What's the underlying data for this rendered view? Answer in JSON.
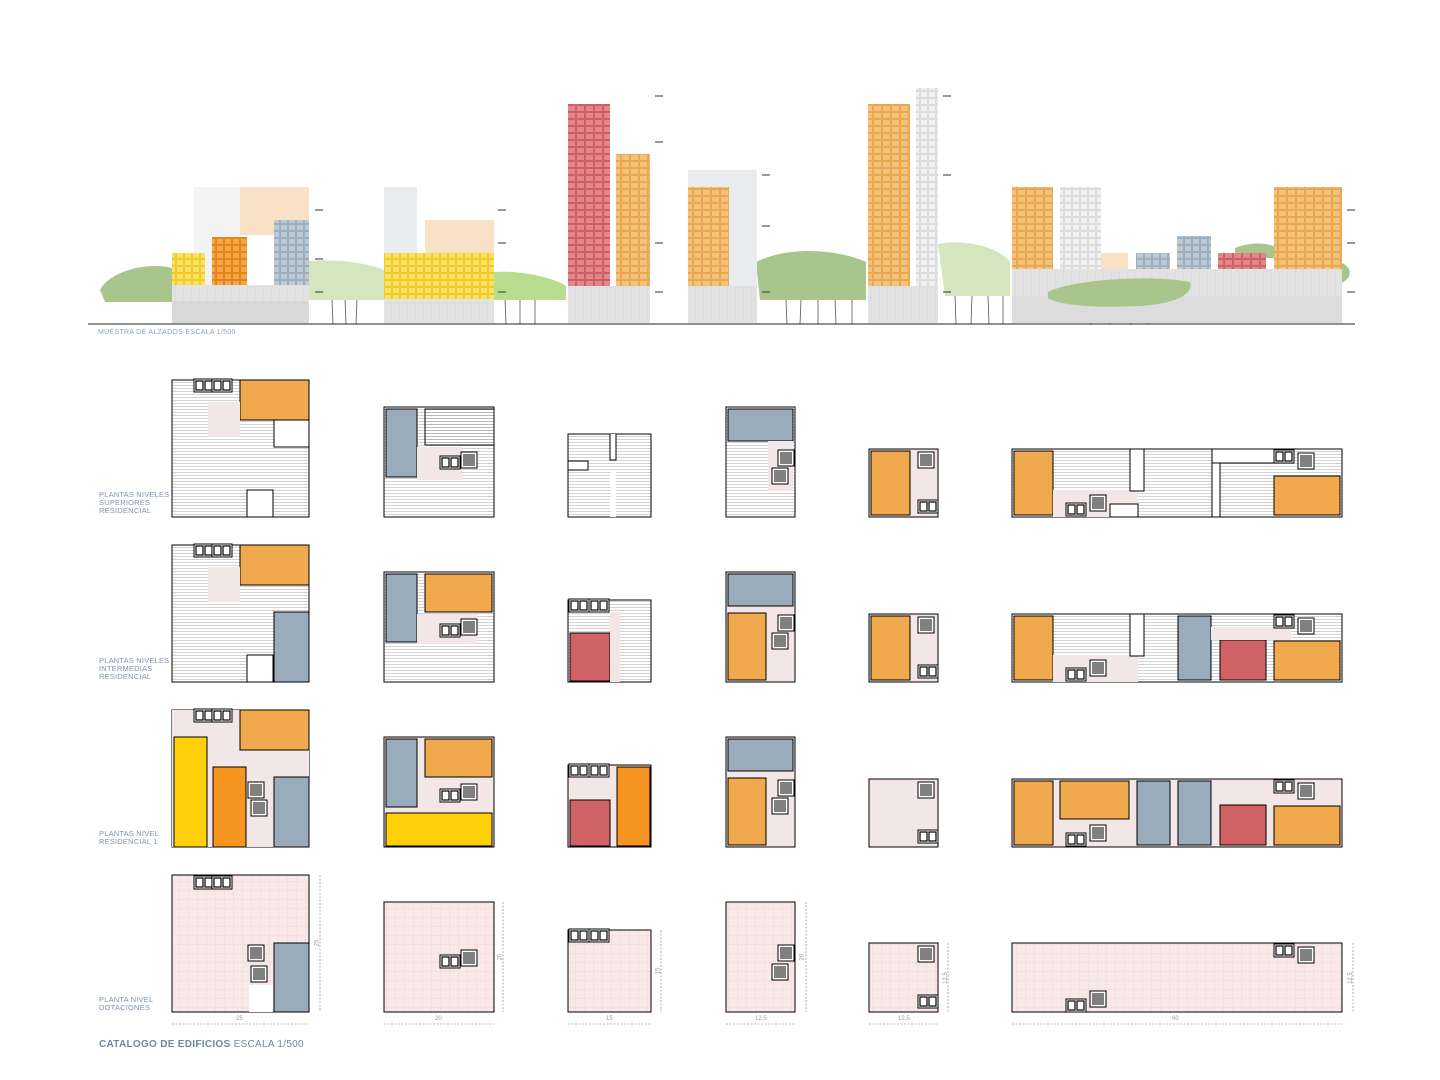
{
  "elevation_caption": "MUESTRA DE ALZADOS ESCALA 1/500",
  "row_labels": [
    [
      "PLANTAS NIVELES",
      "SUPERIORES",
      "RESIDENCIAL"
    ],
    [
      "PLANTAS NIVELES",
      "INTERMEDIAS",
      "RESIDENCIAL"
    ],
    [
      "PLANTAS NIVEL",
      "RESIDENCIAL 1"
    ],
    [
      "PLANTA NIVEL",
      "DOTACIONES"
    ]
  ],
  "catalog": {
    "title_bold": "CATALOGO DE EDIFICIOS",
    "title_rest": "ESCALA 1/500"
  },
  "dimensions": {
    "widths": [
      "25",
      "20",
      "15",
      "12,5",
      "12,5",
      "60"
    ],
    "heights": [
      "25",
      "20",
      "15",
      "20",
      "12,5",
      "12,5"
    ]
  },
  "colors": {
    "orange": "#f0a94c",
    "dark_orange": "#f5941f",
    "yellow": "#ffcf0a",
    "grey_blue": "#9aacbc",
    "red": "#d06266",
    "peach": "#f9e1c6",
    "pale_pink": "#f3e6e6",
    "tree_green": "#a9c58e",
    "light_green": "#b8dd8f",
    "label_blue": "#7d93b4"
  }
}
